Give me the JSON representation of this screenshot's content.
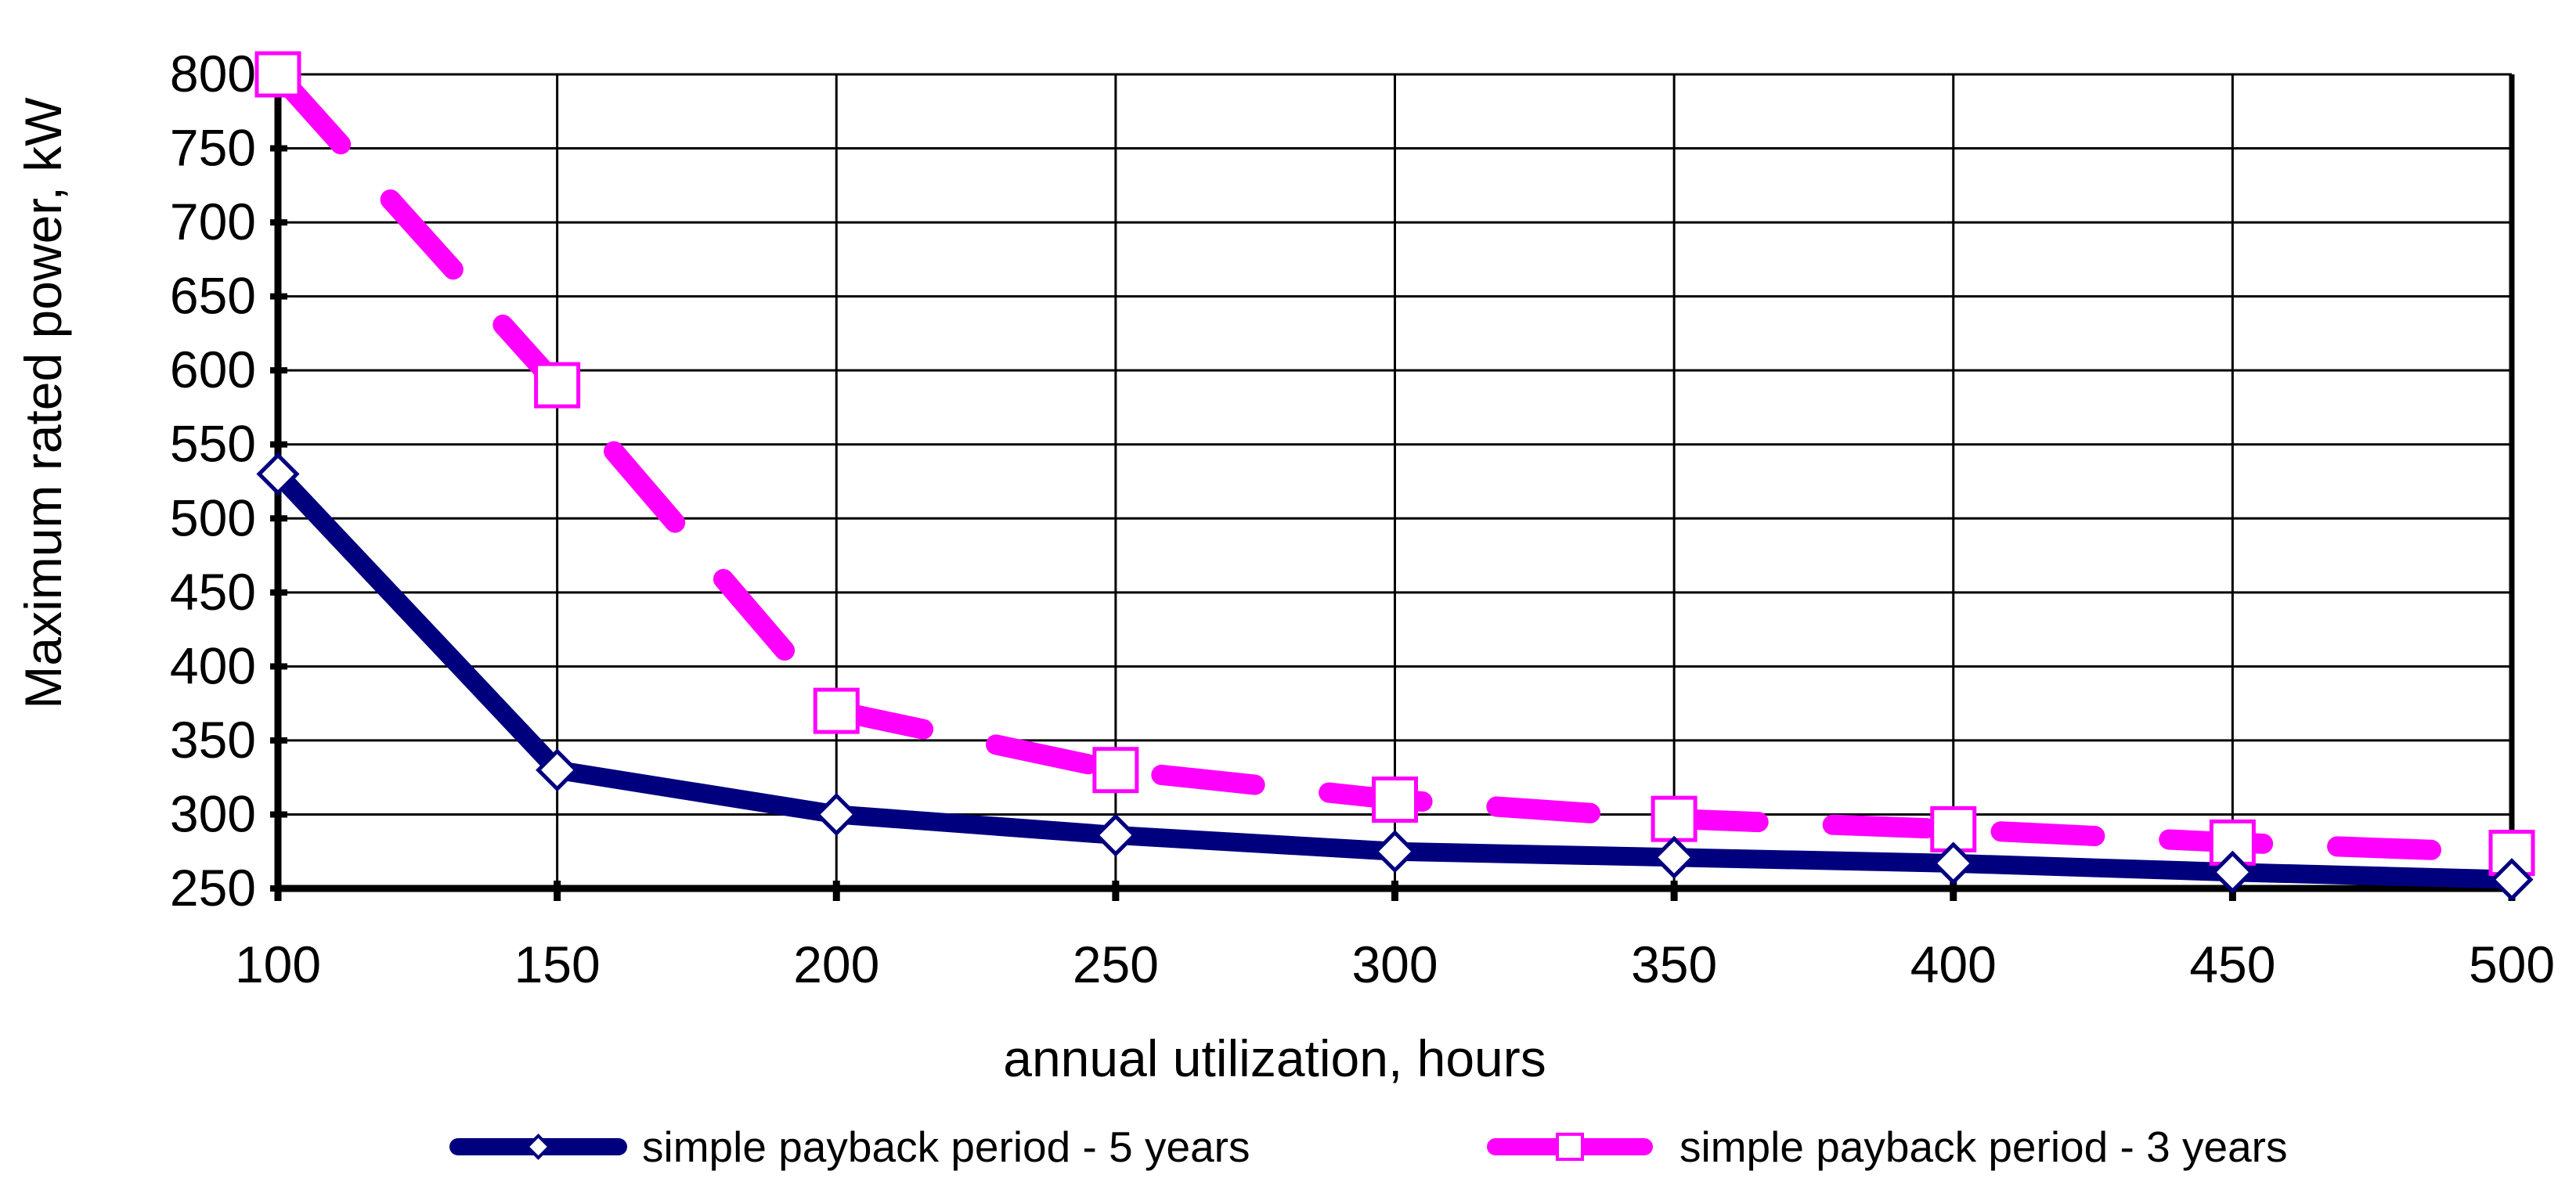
{
  "chart_data": {
    "type": "line",
    "title": "",
    "xlabel": "annual utilization, hours",
    "ylabel": "Maximum rated power, kW",
    "x": [
      100,
      150,
      200,
      250,
      300,
      350,
      400,
      450,
      500
    ],
    "xlim": [
      100,
      500
    ],
    "ylim": [
      250,
      800
    ],
    "xticks": [
      100,
      150,
      200,
      250,
      300,
      350,
      400,
      450,
      500
    ],
    "yticks": [
      250,
      300,
      350,
      400,
      450,
      500,
      550,
      600,
      650,
      700,
      750,
      800
    ],
    "grid": true,
    "legend_position": "bottom",
    "series": [
      {
        "name": "simple payback period - 5 years",
        "values": [
          530,
          330,
          300,
          286,
          275,
          271,
          267,
          261,
          256
        ],
        "color": "#00007F",
        "line_style": "solid",
        "marker": "diamond"
      },
      {
        "name": "simple payback period - 3 years",
        "values": [
          800,
          590,
          370,
          330,
          310,
          297,
          290,
          281,
          274
        ],
        "color": "#FF00FF",
        "line_style": "dashed",
        "marker": "square"
      }
    ]
  }
}
